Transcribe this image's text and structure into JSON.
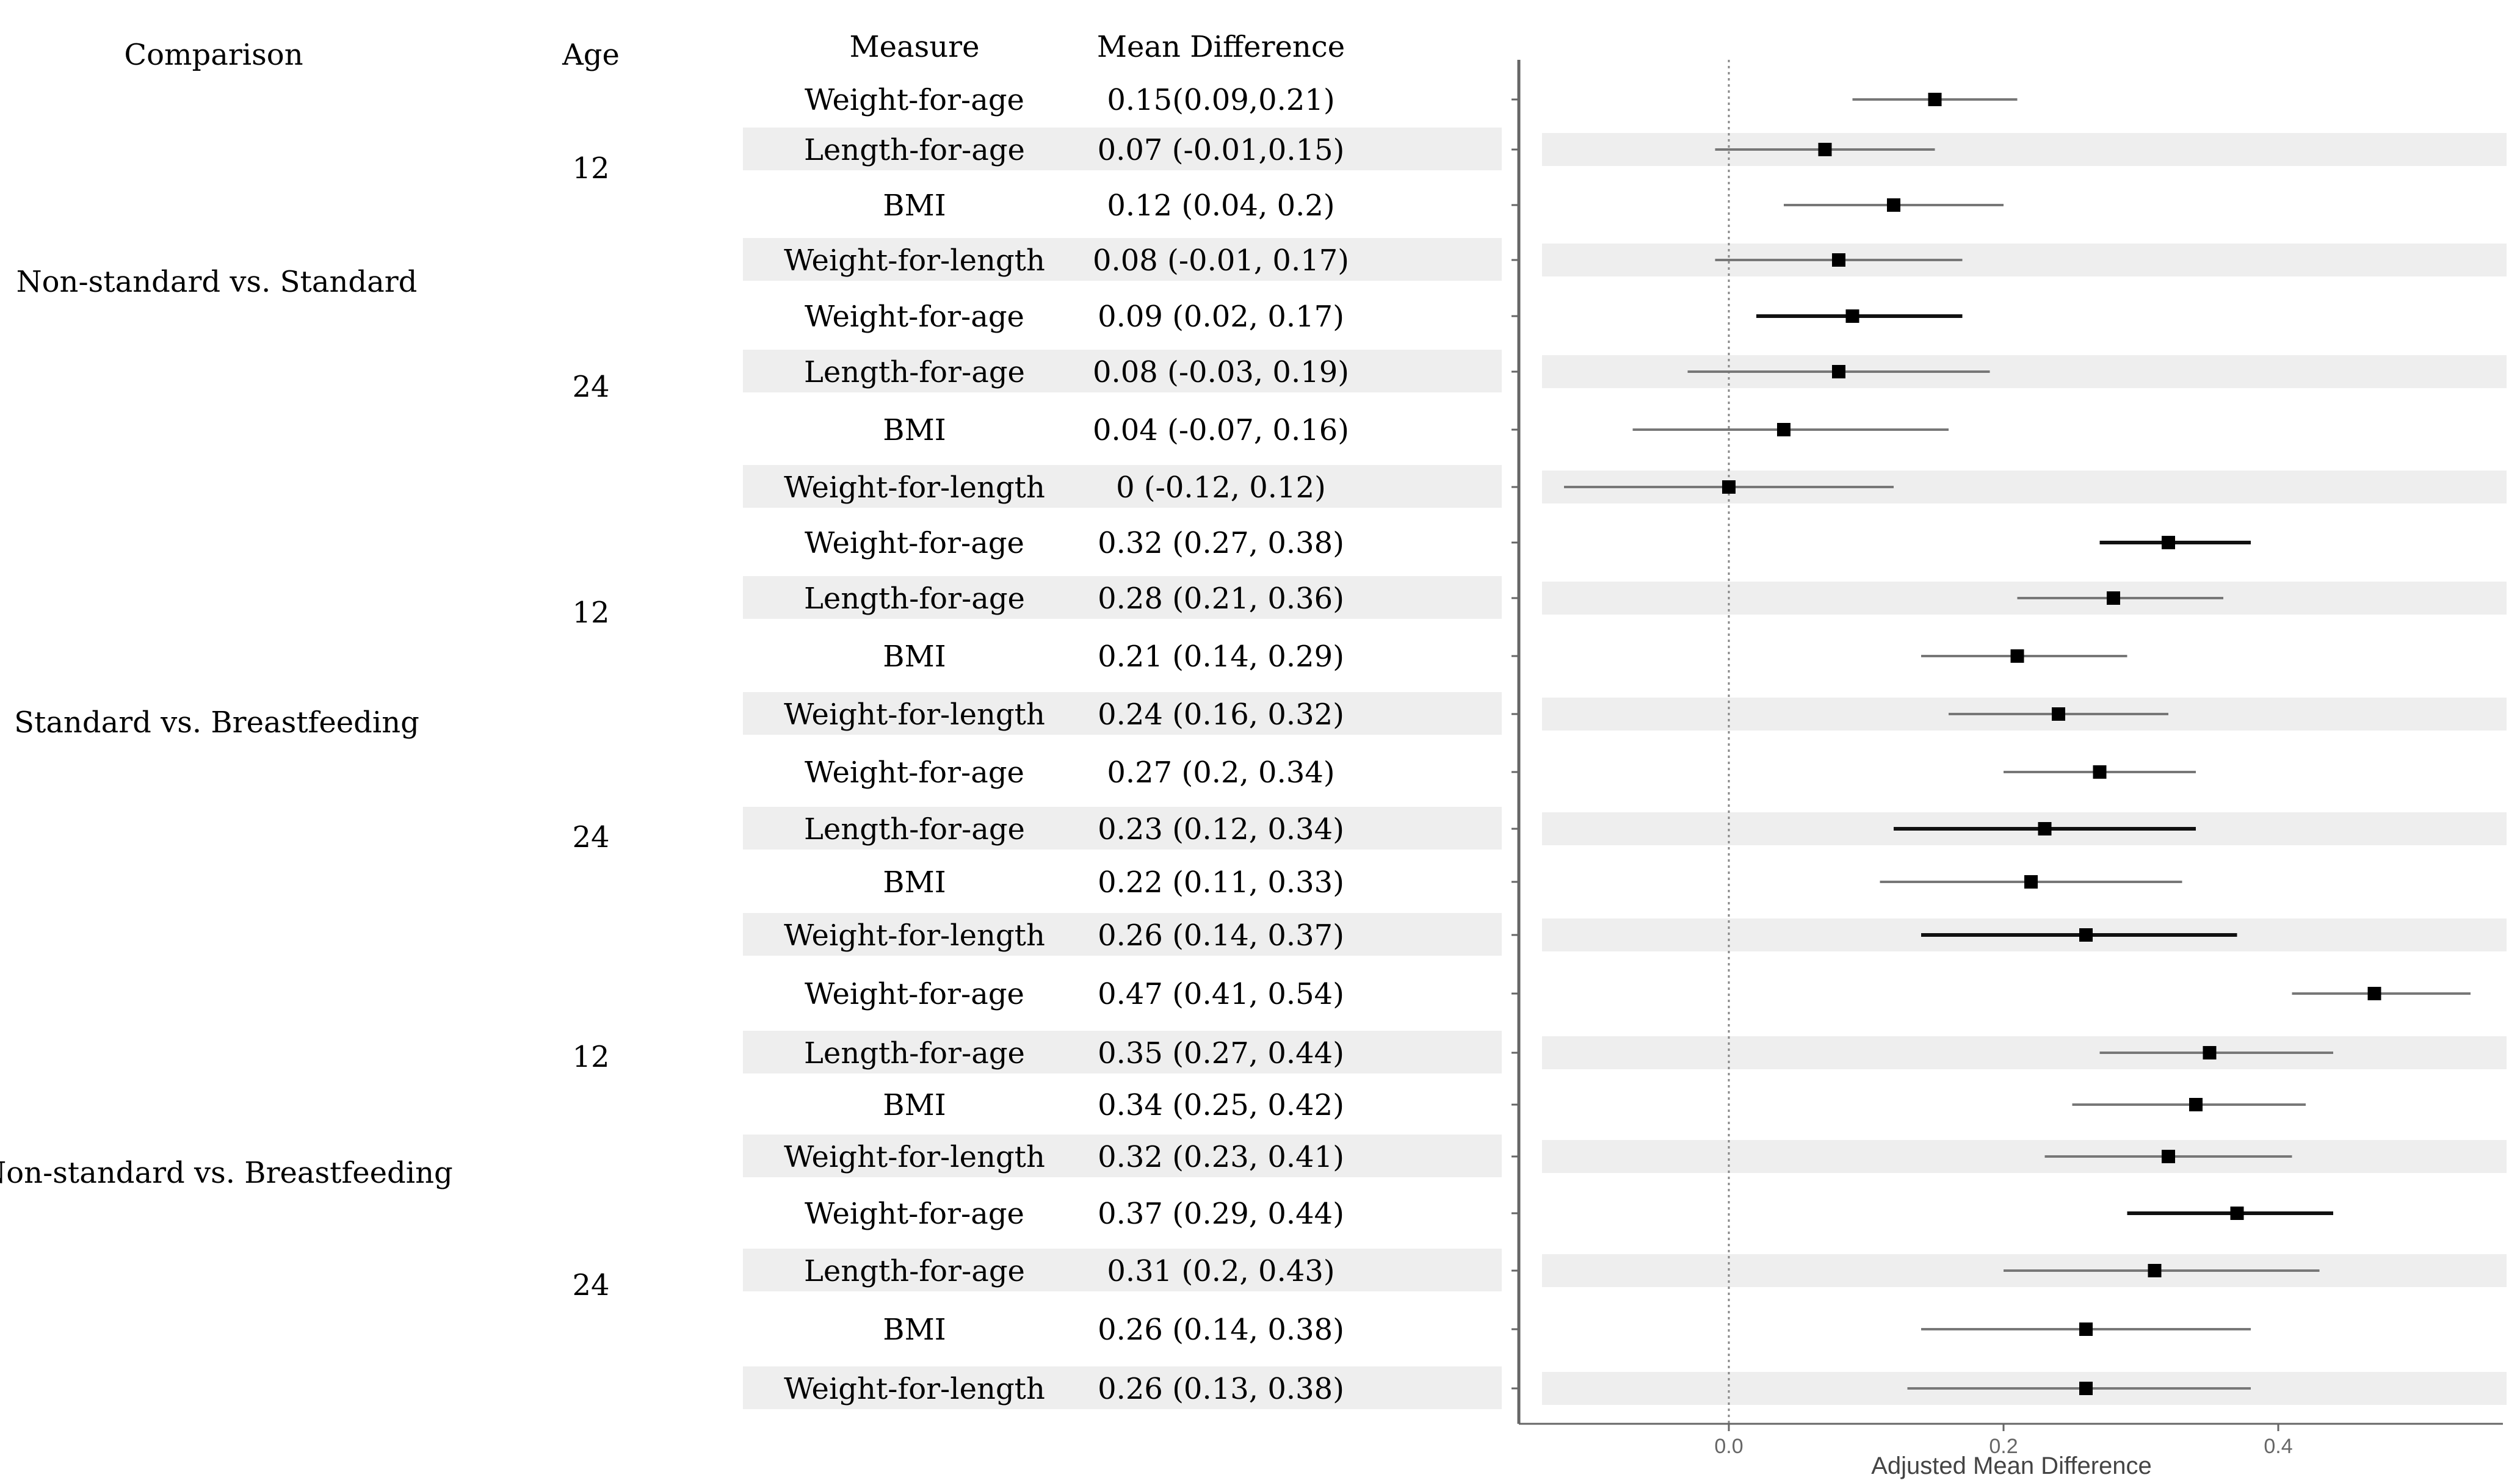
{
  "table": {
    "headers": {
      "comparison": "Comparison",
      "age": "Age",
      "measure": "Measure",
      "mean_difference": "Mean Difference"
    },
    "groups": [
      {
        "label": "Non-standard vs. Standard"
      },
      {
        "label": "Standard vs. Breastfeeding"
      },
      {
        "label": "Non-standard vs. Breastfeeding"
      }
    ],
    "ages": [
      "12",
      "24",
      "12",
      "24",
      "12",
      "24"
    ],
    "rows": [
      {
        "measure": "Weight-for-age",
        "text": "0.15(0.09,0.21)"
      },
      {
        "measure": "Length-for-age",
        "text": "0.07 (-0.01,0.15)"
      },
      {
        "measure": "BMI",
        "text": "0.12 (0.04, 0.2)"
      },
      {
        "measure": "Weight-for-length",
        "text": "0.08 (-0.01, 0.17)"
      },
      {
        "measure": "Weight-for-age",
        "text": "0.09 (0.02, 0.17)"
      },
      {
        "measure": "Length-for-age",
        "text": "0.08 (-0.03, 0.19)"
      },
      {
        "measure": "BMI",
        "text": "0.04 (-0.07, 0.16)"
      },
      {
        "measure": "Weight-for-length",
        "text": "0 (-0.12, 0.12)"
      },
      {
        "measure": "Weight-for-age",
        "text": "0.32 (0.27, 0.38)"
      },
      {
        "measure": "Length-for-age",
        "text": "0.28 (0.21, 0.36)"
      },
      {
        "measure": "BMI",
        "text": "0.21 (0.14, 0.29)"
      },
      {
        "measure": "Weight-for-length",
        "text": "0.24 (0.16, 0.32)"
      },
      {
        "measure": "Weight-for-age",
        "text": "0.27 (0.2, 0.34)"
      },
      {
        "measure": "Length-for-age",
        "text": "0.23 (0.12, 0.34)"
      },
      {
        "measure": "BMI",
        "text": "0.22 (0.11, 0.33)"
      },
      {
        "measure": "Weight-for-length",
        "text": "0.26 (0.14, 0.37)"
      },
      {
        "measure": "Weight-for-age",
        "text": "0.47 (0.41, 0.54)"
      },
      {
        "measure": "Length-for-age",
        "text": "0.35 (0.27, 0.44)"
      },
      {
        "measure": "BMI",
        "text": "0.34 (0.25, 0.42)"
      },
      {
        "measure": "Weight-for-length",
        "text": "0.32 (0.23, 0.41)"
      },
      {
        "measure": "Weight-for-age",
        "text": "0.37 (0.29, 0.44)"
      },
      {
        "measure": "Length-for-age",
        "text": "0.31 (0.2, 0.43)"
      },
      {
        "measure": "BMI",
        "text": "0.26 (0.14, 0.38)"
      },
      {
        "measure": "Weight-for-length",
        "text": "0.26 (0.13, 0.38)"
      }
    ]
  },
  "chart_data": {
    "type": "scatter",
    "subtype": "forest-plot",
    "title": "",
    "xlabel": "Adjusted Mean Difference",
    "ylabel": "",
    "xlim": [
      -0.15,
      0.56
    ],
    "x_ticks": [
      0.0,
      0.2,
      0.4
    ],
    "x_tick_labels": [
      "0.0",
      "0.2",
      "0.4"
    ],
    "reference_line": 0,
    "grid": false,
    "series": [
      {
        "name": "Adjusted Mean Difference",
        "estimates": [
          0.15,
          0.07,
          0.12,
          0.08,
          0.09,
          0.08,
          0.04,
          0,
          0.32,
          0.28,
          0.21,
          0.24,
          0.27,
          0.23,
          0.22,
          0.26,
          0.47,
          0.35,
          0.34,
          0.32,
          0.37,
          0.31,
          0.26,
          0.26
        ],
        "lower": [
          0.09,
          -0.01,
          0.04,
          -0.01,
          0.02,
          -0.03,
          -0.07,
          -0.12,
          0.27,
          0.21,
          0.14,
          0.16,
          0.2,
          0.12,
          0.11,
          0.14,
          0.41,
          0.27,
          0.25,
          0.23,
          0.29,
          0.2,
          0.14,
          0.13
        ],
        "upper": [
          0.21,
          0.15,
          0.2,
          0.17,
          0.17,
          0.19,
          0.16,
          0.12,
          0.38,
          0.36,
          0.29,
          0.32,
          0.34,
          0.34,
          0.33,
          0.37,
          0.54,
          0.44,
          0.42,
          0.41,
          0.44,
          0.43,
          0.38,
          0.38
        ],
        "emphasis": [
          false,
          false,
          false,
          false,
          true,
          false,
          false,
          false,
          true,
          false,
          false,
          false,
          false,
          true,
          false,
          true,
          false,
          false,
          false,
          false,
          true,
          false,
          false,
          false
        ]
      }
    ],
    "colors": {
      "marker": "#000000",
      "ci_normal": "#777777",
      "ci_emphasis": "#111111",
      "stripe": "#eeeeee",
      "axis": "#666666",
      "reference_line": "#888888"
    }
  }
}
